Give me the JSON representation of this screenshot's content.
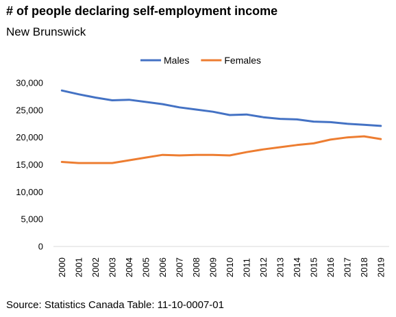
{
  "title": "# of people declaring self-employment income",
  "subtitle": "New Brunswick",
  "source": "Source: Statistics Canada Table: 11-10-0007-01",
  "chart_data": {
    "type": "line",
    "title": "# of people declaring self-employment income",
    "subtitle": "New Brunswick",
    "x": [
      "2000",
      "2001",
      "2002",
      "2003",
      "2004",
      "2005",
      "2006",
      "2007",
      "2008",
      "2009",
      "2010",
      "2011",
      "2012",
      "2013",
      "2014",
      "2015",
      "2016",
      "2017",
      "2018",
      "2019"
    ],
    "series": [
      {
        "name": "Males",
        "color": "#4472C4",
        "values": [
          28600,
          27900,
          27300,
          26800,
          26900,
          26500,
          26100,
          25500,
          25100,
          24700,
          24100,
          24200,
          23700,
          23400,
          23300,
          22900,
          22800,
          22500,
          22300,
          22100
        ]
      },
      {
        "name": "Females",
        "color": "#ED7D31",
        "values": [
          15500,
          15300,
          15300,
          15300,
          15800,
          16300,
          16800,
          16700,
          16800,
          16800,
          16700,
          17300,
          17800,
          18200,
          18600,
          18900,
          19600,
          20000,
          20200,
          19700
        ]
      }
    ],
    "yticks": [
      "0",
      "5,000",
      "10,000",
      "15,000",
      "20,000",
      "25,000",
      "30,000"
    ],
    "ytick_values": [
      0,
      5000,
      10000,
      15000,
      20000,
      25000,
      30000
    ],
    "ylim": [
      0,
      30000
    ],
    "grid": false,
    "legend": "top-center"
  }
}
